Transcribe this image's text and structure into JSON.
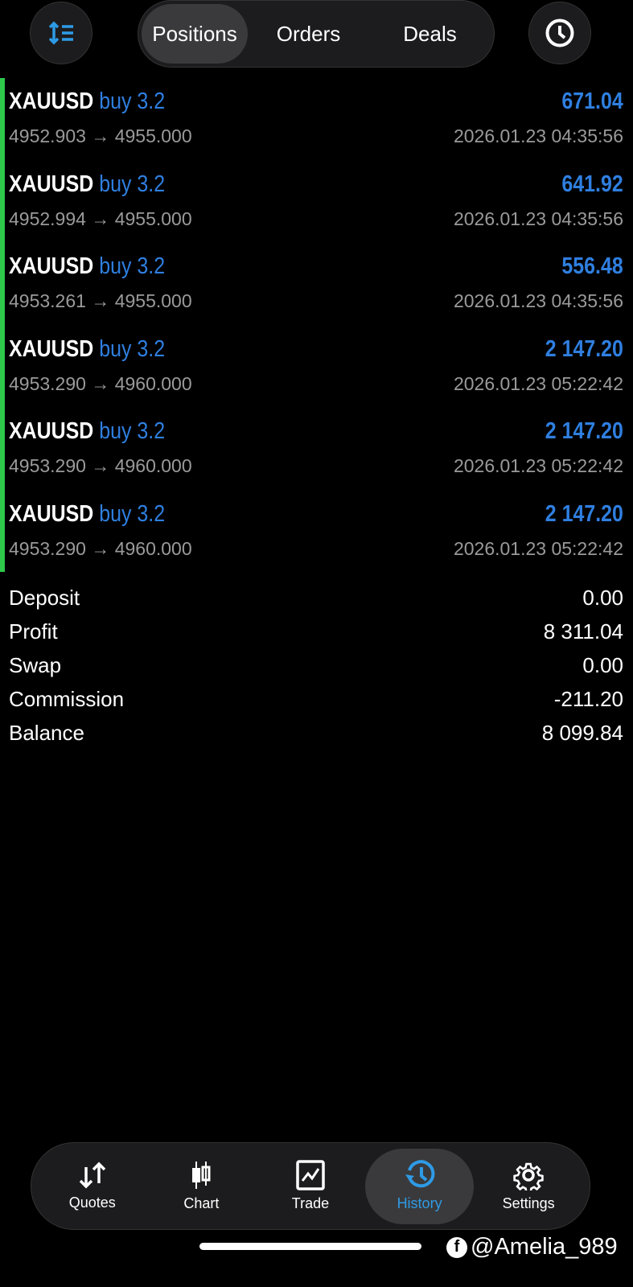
{
  "header": {
    "tabs": [
      {
        "label": "Positions",
        "active": true
      },
      {
        "label": "Orders"
      },
      {
        "label": "Deals"
      }
    ],
    "left_icon": "sort-icon",
    "right_icon": "clock-icon"
  },
  "rows": [
    {
      "symbol": "XAUUSD",
      "side": "buy 3.2",
      "profit": "671.04",
      "prices": "4952.903 → 4955.000",
      "time": "2026.01.23 04:35:56"
    },
    {
      "symbol": "XAUUSD",
      "side": "buy 3.2",
      "profit": "641.92",
      "prices": "4952.994 → 4955.000",
      "time": "2026.01.23 04:35:56"
    },
    {
      "symbol": "XAUUSD",
      "side": "buy 3.2",
      "profit": "556.48",
      "prices": "4953.261 → 4955.000",
      "time": "2026.01.23 04:35:56"
    },
    {
      "symbol": "XAUUSD",
      "side": "buy 3.2",
      "profit": "2 147.20",
      "prices": "4953.290 → 4960.000",
      "time": "2026.01.23 05:22:42"
    },
    {
      "symbol": "XAUUSD",
      "side": "buy 3.2",
      "profit": "2 147.20",
      "prices": "4953.290 → 4960.000",
      "time": "2026.01.23 05:22:42"
    },
    {
      "symbol": "XAUUSD",
      "side": "buy 3.2",
      "profit": "2 147.20",
      "prices": "4953.290 → 4960.000",
      "time": "2026.01.23 05:22:42"
    }
  ],
  "summary": [
    {
      "label": "Deposit",
      "value": "0.00"
    },
    {
      "label": "Profit",
      "value": "8 311.04"
    },
    {
      "label": "Swap",
      "value": "0.00"
    },
    {
      "label": "Commission",
      "value": "-211.20"
    },
    {
      "label": "Balance",
      "value": "8 099.84"
    }
  ],
  "nav": [
    {
      "label": "Quotes"
    },
    {
      "label": "Chart"
    },
    {
      "label": "Trade"
    },
    {
      "label": "History",
      "active": true
    },
    {
      "label": "Settings"
    }
  ],
  "watermark": "@Amelia_989",
  "colors": {
    "accent": "#2f7fe0",
    "green": "#2ec84a",
    "nav_active": "#2e9be6"
  }
}
